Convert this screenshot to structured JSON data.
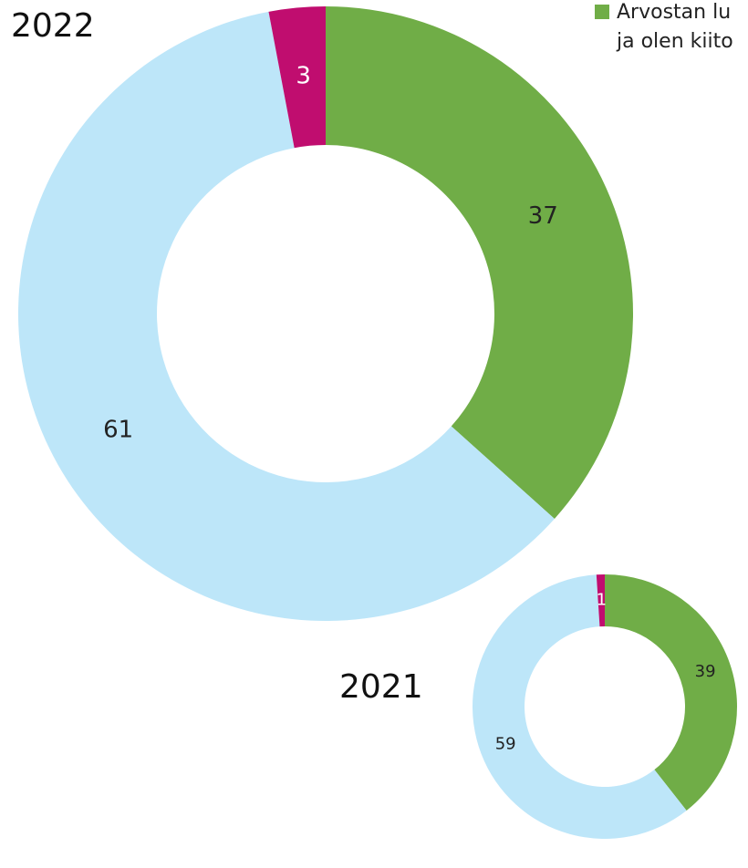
{
  "chart_data": [
    {
      "type": "pie",
      "title": "2022",
      "values": [
        37,
        61,
        3
      ],
      "colors": [
        "#70ad47",
        "#bde6f9",
        "#c00d6f"
      ],
      "label_colors": [
        "#222222",
        "#222222",
        "#ffffff"
      ],
      "legend_lines": [
        "Arvostan lu",
        "ja olen kiito"
      ]
    },
    {
      "type": "pie",
      "title": "2021",
      "values": [
        39,
        59,
        1
      ],
      "colors": [
        "#70ad47",
        "#bde6f9",
        "#c00d6f"
      ],
      "label_colors": [
        "#222222",
        "#222222",
        "#ffffff"
      ]
    }
  ]
}
